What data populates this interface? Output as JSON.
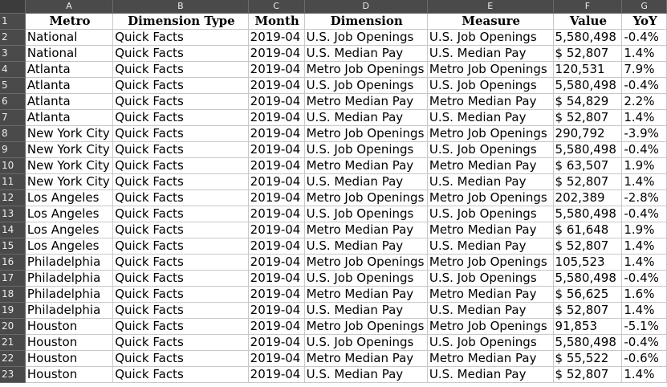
{
  "columns": [
    "A",
    "B",
    "C",
    "D",
    "E",
    "F",
    "G"
  ],
  "header_row": {
    "row_number": "1",
    "cells": [
      "Metro",
      "Dimension Type",
      "Month",
      "Dimension",
      "Measure",
      "Value",
      "YoY"
    ]
  },
  "rows": [
    {
      "n": "2",
      "cells": [
        "National",
        "Quick Facts",
        "2019-04",
        "U.S. Job Openings",
        "U.S. Job Openings",
        "5,580,498",
        "-0.4%"
      ]
    },
    {
      "n": "3",
      "cells": [
        "National",
        "Quick Facts",
        "2019-04",
        "U.S. Median Pay",
        "U.S. Median Pay",
        "$ 52,807",
        "1.4%"
      ]
    },
    {
      "n": "4",
      "cells": [
        "Atlanta",
        "Quick Facts",
        "2019-04",
        "Metro Job Openings",
        "Metro Job Openings",
        "120,531",
        "7.9%"
      ]
    },
    {
      "n": "5",
      "cells": [
        "Atlanta",
        "Quick Facts",
        "2019-04",
        "U.S. Job Openings",
        "U.S. Job Openings",
        "5,580,498",
        "-0.4%"
      ]
    },
    {
      "n": "6",
      "cells": [
        "Atlanta",
        "Quick Facts",
        "2019-04",
        "Metro Median Pay",
        "Metro Median Pay",
        "$ 54,829",
        "2.2%"
      ]
    },
    {
      "n": "7",
      "cells": [
        "Atlanta",
        "Quick Facts",
        "2019-04",
        "U.S. Median Pay",
        "U.S. Median Pay",
        "$ 52,807",
        "1.4%"
      ]
    },
    {
      "n": "8",
      "cells": [
        "New York City",
        "Quick Facts",
        "2019-04",
        "Metro Job Openings",
        "Metro Job Openings",
        "290,792",
        "-3.9%"
      ]
    },
    {
      "n": "9",
      "cells": [
        "New York City",
        "Quick Facts",
        "2019-04",
        "U.S. Job Openings",
        "U.S. Job Openings",
        "5,580,498",
        "-0.4%"
      ]
    },
    {
      "n": "10",
      "cells": [
        "New York City",
        "Quick Facts",
        "2019-04",
        "Metro Median Pay",
        "Metro Median Pay",
        "$ 63,507",
        "1.9%"
      ]
    },
    {
      "n": "11",
      "cells": [
        "New York City",
        "Quick Facts",
        "2019-04",
        "U.S. Median Pay",
        "U.S. Median Pay",
        "$ 52,807",
        "1.4%"
      ]
    },
    {
      "n": "12",
      "cells": [
        "Los Angeles",
        "Quick Facts",
        "2019-04",
        "Metro Job Openings",
        "Metro Job Openings",
        "202,389",
        "-2.8%"
      ]
    },
    {
      "n": "13",
      "cells": [
        "Los Angeles",
        "Quick Facts",
        "2019-04",
        "U.S. Job Openings",
        "U.S. Job Openings",
        "5,580,498",
        "-0.4%"
      ]
    },
    {
      "n": "14",
      "cells": [
        "Los Angeles",
        "Quick Facts",
        "2019-04",
        "Metro Median Pay",
        "Metro Median Pay",
        "$ 61,648",
        "1.9%"
      ]
    },
    {
      "n": "15",
      "cells": [
        "Los Angeles",
        "Quick Facts",
        "2019-04",
        "U.S. Median Pay",
        "U.S. Median Pay",
        "$ 52,807",
        "1.4%"
      ]
    },
    {
      "n": "16",
      "cells": [
        "Philadelphia",
        "Quick Facts",
        "2019-04",
        "Metro Job Openings",
        "Metro Job Openings",
        "105,523",
        "1.4%"
      ]
    },
    {
      "n": "17",
      "cells": [
        "Philadelphia",
        "Quick Facts",
        "2019-04",
        "U.S. Job Openings",
        "U.S. Job Openings",
        "5,580,498",
        "-0.4%"
      ]
    },
    {
      "n": "18",
      "cells": [
        "Philadelphia",
        "Quick Facts",
        "2019-04",
        "Metro Median Pay",
        "Metro Median Pay",
        "$ 56,625",
        "1.6%"
      ]
    },
    {
      "n": "19",
      "cells": [
        "Philadelphia",
        "Quick Facts",
        "2019-04",
        "U.S. Median Pay",
        "U.S. Median Pay",
        "$ 52,807",
        "1.4%"
      ]
    },
    {
      "n": "20",
      "cells": [
        "Houston",
        "Quick Facts",
        "2019-04",
        "Metro Job Openings",
        "Metro Job Openings",
        "91,853",
        "-5.1%"
      ]
    },
    {
      "n": "21",
      "cells": [
        "Houston",
        "Quick Facts",
        "2019-04",
        "U.S. Job Openings",
        "U.S. Job Openings",
        "5,580,498",
        "-0.4%"
      ]
    },
    {
      "n": "22",
      "cells": [
        "Houston",
        "Quick Facts",
        "2019-04",
        "Metro Median Pay",
        "Metro Median Pay",
        "$ 55,522",
        "-0.6%"
      ]
    },
    {
      "n": "23",
      "cells": [
        "Houston",
        "Quick Facts",
        "2019-04",
        "U.S. Median Pay",
        "U.S. Median Pay",
        "$ 52,807",
        "1.4%"
      ]
    }
  ]
}
